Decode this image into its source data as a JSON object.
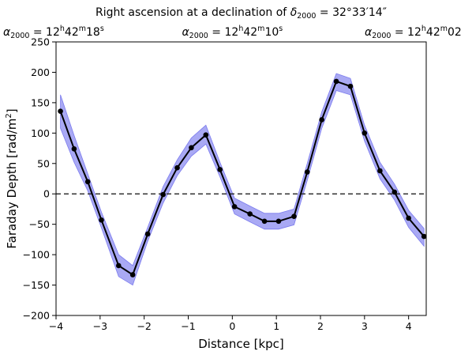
{
  "chart_data": {
    "type": "line",
    "title": "Right ascension at a declination of δ2000 = 32°33′14″",
    "top_labels": [
      {
        "text": "α2000 = 12h42m18s",
        "x": -3.9
      },
      {
        "text": "α2000 = 12h42m10s",
        "x": 0.0
      },
      {
        "text": "α2000 = 12h42m02",
        "x": 4.35
      }
    ],
    "xlabel": "Distance [kpc]",
    "ylabel": "Faraday Depth [rad/m²]",
    "xlim": [
      -4.0,
      4.4
    ],
    "ylim": [
      -200,
      250
    ],
    "xticks": [
      -4,
      -3,
      -2,
      -1,
      0,
      1,
      2,
      3,
      4
    ],
    "yticks": [
      -200,
      -150,
      -100,
      -50,
      0,
      50,
      100,
      150,
      200,
      250
    ],
    "reference_line": {
      "y": 0,
      "style": "dashed",
      "color": "#333333"
    },
    "series": [
      {
        "color": "#000000",
        "band_color": "#7b7bee",
        "x": [
          -3.9,
          -3.59,
          -3.28,
          -2.97,
          -2.58,
          -2.26,
          -1.92,
          -1.57,
          -1.25,
          -0.93,
          -0.6,
          -0.28,
          0.05,
          0.4,
          0.73,
          1.05,
          1.4,
          1.7,
          2.03,
          2.36,
          2.68,
          3.0,
          3.35,
          3.68,
          4.0,
          4.35
        ],
        "y": [
          136,
          74,
          20,
          -43,
          -118,
          -133,
          -66,
          -1,
          43,
          76,
          97,
          40,
          -21,
          -33,
          -45,
          -45,
          -37,
          36,
          122,
          185,
          177,
          100,
          38,
          3,
          -40,
          -70
        ],
        "upper": [
          163,
          96,
          33,
          -30,
          -100,
          -118,
          -55,
          12,
          56,
          92,
          113,
          52,
          -7,
          -20,
          -32,
          -32,
          -25,
          50,
          135,
          198,
          190,
          113,
          52,
          16,
          -27,
          -57
        ],
        "lower": [
          108,
          52,
          5,
          -56,
          -136,
          -150,
          -78,
          -15,
          30,
          62,
          82,
          28,
          -33,
          -46,
          -58,
          -58,
          -51,
          22,
          108,
          170,
          163,
          87,
          25,
          -10,
          -55,
          -86
        ]
      }
    ]
  }
}
